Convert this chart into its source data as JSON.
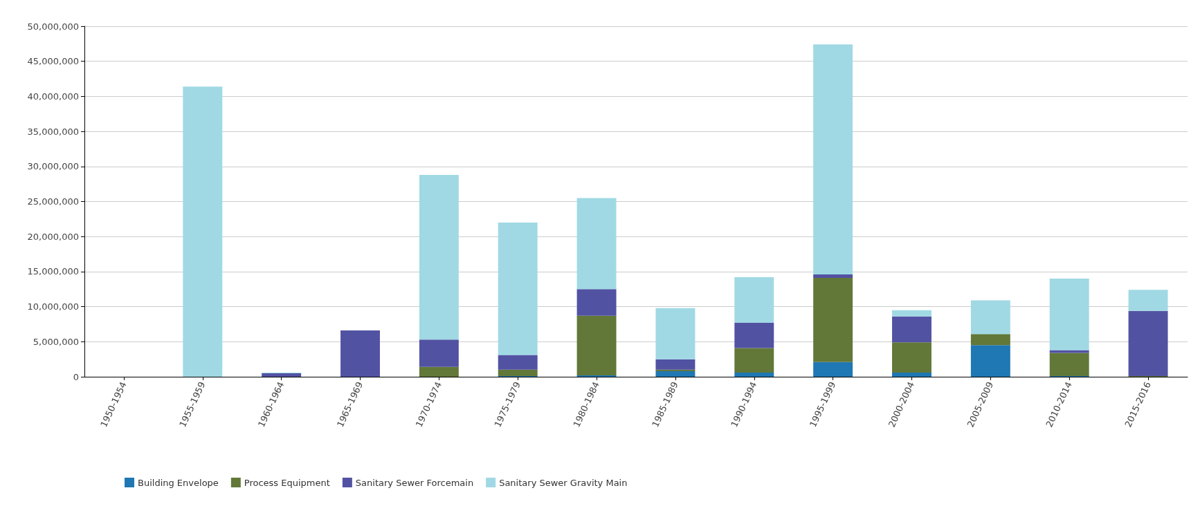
{
  "chart_data": {
    "type": "bar",
    "stacked": true,
    "categories": [
      "1950-1954",
      "1955-1959",
      "1960-1964",
      "1965-1969",
      "1970-1974",
      "1975-1979",
      "1980-1984",
      "1985-1989",
      "1990-1994",
      "1995-1999",
      "2000-2004",
      "2005-2009",
      "2010-2014",
      "2015-2016"
    ],
    "series": [
      {
        "name": "Building Envelope",
        "color": "#1f77b4",
        "values": [
          0,
          0,
          0,
          0,
          0,
          100000,
          200000,
          800000,
          600000,
          2100000,
          600000,
          4500000,
          100000,
          0
        ]
      },
      {
        "name": "Process Equipment",
        "color": "#627838",
        "values": [
          0,
          0,
          0,
          0,
          1400000,
          900000,
          8500000,
          200000,
          3500000,
          12000000,
          4300000,
          1600000,
          3300000,
          100000
        ]
      },
      {
        "name": "Sanitary Sewer Forcemain",
        "color": "#5252a3",
        "values": [
          0,
          0,
          500000,
          6600000,
          3900000,
          2100000,
          3800000,
          1500000,
          3600000,
          500000,
          3700000,
          0,
          400000,
          9300000
        ]
      },
      {
        "name": "Sanitary Sewer Gravity Main",
        "color": "#a0d9e4",
        "values": [
          0,
          41400000,
          100000,
          0,
          23500000,
          18900000,
          13000000,
          7300000,
          6500000,
          32800000,
          900000,
          4800000,
          10200000,
          3000000
        ]
      }
    ],
    "ylim": [
      0,
      50000000
    ],
    "yticks": [
      0,
      {
        "value": 5000000,
        "label": "5,000,000"
      },
      {
        "value": 10000000,
        "label": "10,000,000"
      },
      {
        "value": 15000000,
        "label": "15,000,000"
      },
      {
        "value": 20000000,
        "label": "20,000,000"
      },
      {
        "value": 25000000,
        "label": "25,000,000"
      },
      {
        "value": 30000000,
        "label": "30,000,000"
      },
      {
        "value": 35000000,
        "label": "35,000,000"
      },
      {
        "value": 40000000,
        "label": "40,000,000"
      },
      {
        "value": 45000000,
        "label": "45,000,000"
      },
      {
        "value": 50000000,
        "label": "50,000,000"
      }
    ],
    "grid": "y",
    "legend": "bottom left"
  }
}
